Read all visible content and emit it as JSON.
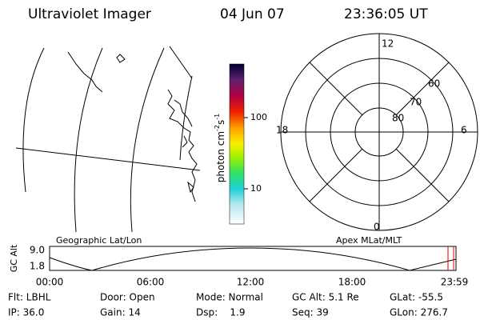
{
  "header": {
    "title": "Ultraviolet Imager",
    "date": "04 Jun 07",
    "time": "23:36:05 UT"
  },
  "colorbar": {
    "label": {
      "base": "photon cm",
      "exp1": "-2",
      "unit2": "s",
      "exp2": "-1"
    },
    "ticks": [
      "100",
      "10"
    ]
  },
  "polar": {
    "mlt_labels": [
      "12",
      "18",
      "6",
      "0"
    ],
    "mlat_labels": [
      "60",
      "70",
      "80"
    ]
  },
  "altitude_plot": {
    "y_label": "GC Alt",
    "y_ticks": [
      "9.0",
      "1.8"
    ],
    "left_label": "Geographic Lat/Lon",
    "right_label": "Apex MLat/MLT",
    "x_ticks": [
      "00:00",
      "06:00",
      "12:00",
      "18:00",
      "23:59"
    ]
  },
  "status": {
    "rows": [
      [
        "Flt: LBHL",
        "Door: Open",
        "Mode: Normal",
        "GC Alt: 5.1 Re",
        "GLat: -55.5"
      ],
      [
        "IP: 36.0",
        "Gain: 14",
        "Dsp:    1.9",
        "Seq: 39",
        "GLon: 276.7"
      ]
    ]
  }
}
